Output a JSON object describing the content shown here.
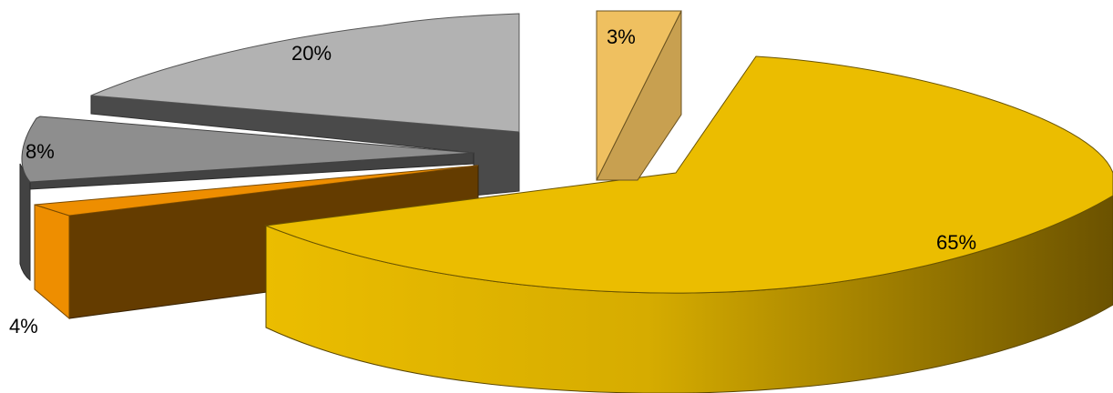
{
  "chart_data": {
    "type": "pie",
    "style": "3d-exploded",
    "title": "",
    "legend": "none",
    "slices": [
      {
        "label": "65%",
        "value": 65,
        "color": "#EBBD00",
        "side_dark": "#6B5200"
      },
      {
        "label": "4%",
        "value": 4,
        "color": "#EE8E00",
        "side_dark": "#643C00"
      },
      {
        "label": "8%",
        "value": 8,
        "color": "#8E8E8E",
        "side_dark": "#424242"
      },
      {
        "label": "20%",
        "value": 20,
        "color": "#B2B2B2",
        "side_dark": "#4A4A4A"
      },
      {
        "label": "3%",
        "value": 3,
        "color": "#EFC060",
        "side_dark": "#C8A050"
      }
    ]
  }
}
